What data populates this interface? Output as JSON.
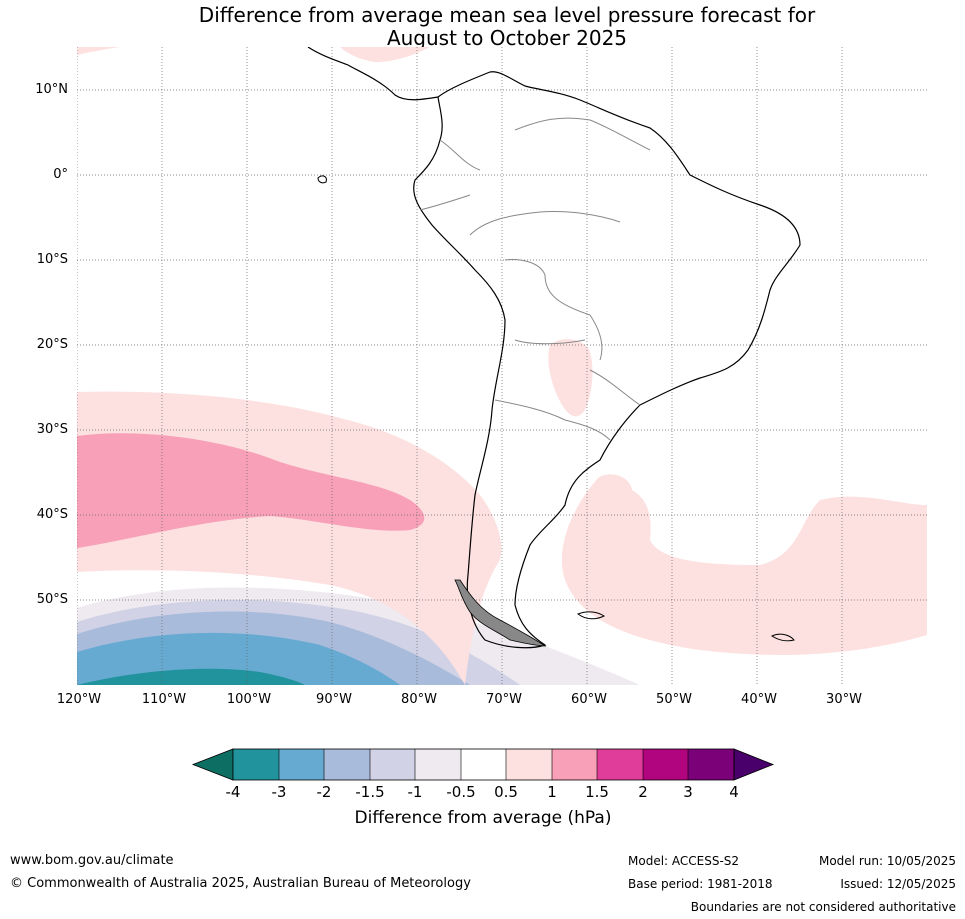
{
  "title_line1": "Difference from average mean sea level pressure forecast for",
  "title_line2": "August to October 2025",
  "lat_labels": [
    "10°N",
    "0°",
    "10°S",
    "20°S",
    "30°S",
    "40°S",
    "50°S"
  ],
  "lon_labels": [
    "120°W",
    "110°W",
    "100°W",
    "90°W",
    "80°W",
    "70°W",
    "60°W",
    "50°W",
    "40°W",
    "30°W"
  ],
  "colorbar": {
    "label": "Difference from average (hPa)",
    "ticks": [
      "-4",
      "-3",
      "-2",
      "-1.5",
      "-1",
      "-0.5",
      "0.5",
      "1",
      "1.5",
      "2",
      "3",
      "4"
    ],
    "colors": [
      "#0d6f63",
      "#21939c",
      "#66aad1",
      "#a8bbdb",
      "#d2d2e6",
      "#eeeaf0",
      "#ffffff",
      "#fde0e0",
      "#f8a0b8",
      "#e03c9a",
      "#b0057e",
      "#7a0177",
      "#4a006a"
    ]
  },
  "footer": {
    "website": "www.bom.gov.au/climate",
    "copyright": "© Commonwealth of Australia 2025, Australian Bureau of Meteorology",
    "model": "Model: ACCESS-S2",
    "base_period": "Base period: 1981-2018",
    "model_run": "Model run: 10/05/2025",
    "issued": "Issued: 12/05/2025",
    "disclaimer": "Boundaries are not considered authoritative"
  }
}
